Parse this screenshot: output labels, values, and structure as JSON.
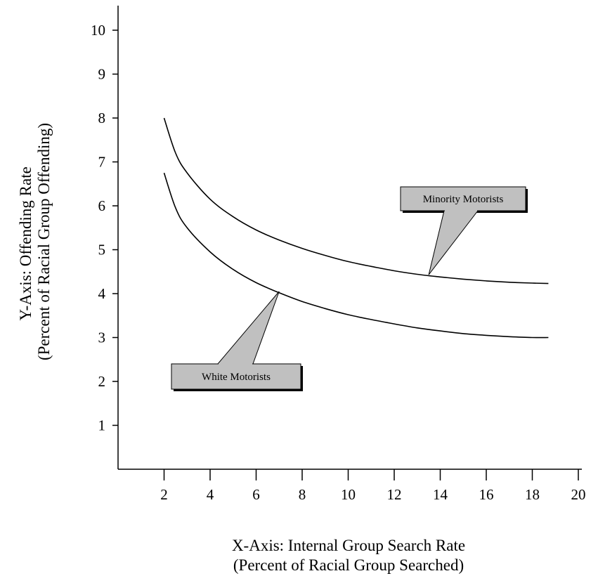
{
  "chart_data": {
    "type": "line",
    "title": "",
    "xlabel": [
      "X-Axis: Internal Group Search Rate",
      "(Percent of Racial Group Searched)"
    ],
    "ylabel": [
      "Y-Axis: Offending Rate",
      "(Percent of Racial Group Offending)"
    ],
    "xlim": [
      0,
      20
    ],
    "ylim": [
      0,
      10
    ],
    "x_ticks": [
      2,
      4,
      6,
      8,
      10,
      12,
      14,
      16,
      18,
      20
    ],
    "y_ticks": [
      1,
      2,
      3,
      4,
      5,
      6,
      7,
      8,
      9,
      10
    ],
    "grid": false,
    "legend": "none",
    "series": [
      {
        "name": "Minority Motorists",
        "color": "#000000",
        "points": [
          [
            2.0,
            8.0
          ],
          [
            2.5,
            7.2
          ],
          [
            3,
            6.75
          ],
          [
            4,
            6.15
          ],
          [
            5,
            5.75
          ],
          [
            6,
            5.45
          ],
          [
            7,
            5.22
          ],
          [
            8,
            5.03
          ],
          [
            9,
            4.87
          ],
          [
            10,
            4.73
          ],
          [
            11,
            4.62
          ],
          [
            12,
            4.52
          ],
          [
            13,
            4.44
          ],
          [
            14,
            4.38
          ],
          [
            15,
            4.33
          ],
          [
            16,
            4.29
          ],
          [
            17,
            4.26
          ],
          [
            18,
            4.24
          ],
          [
            18.7,
            4.23
          ]
        ]
      },
      {
        "name": "White Motorists",
        "color": "#000000",
        "points": [
          [
            2.0,
            6.75
          ],
          [
            2.5,
            5.95
          ],
          [
            3,
            5.5
          ],
          [
            4,
            4.95
          ],
          [
            5,
            4.55
          ],
          [
            6,
            4.25
          ],
          [
            7,
            4.02
          ],
          [
            8,
            3.82
          ],
          [
            9,
            3.66
          ],
          [
            10,
            3.52
          ],
          [
            11,
            3.41
          ],
          [
            12,
            3.31
          ],
          [
            13,
            3.22
          ],
          [
            14,
            3.15
          ],
          [
            15,
            3.09
          ],
          [
            16,
            3.05
          ],
          [
            17,
            3.02
          ],
          [
            18,
            3.0
          ],
          [
            18.7,
            3.0
          ]
        ]
      }
    ],
    "annotations": [
      {
        "text": "Minority Motorists",
        "series": "Minority Motorists",
        "point": [
          13.5,
          4.43
        ]
      },
      {
        "text": "White Motorists",
        "series": "White Motorists",
        "point": [
          7.0,
          4.05
        ]
      }
    ],
    "callout_fill": "#c0c0c0"
  }
}
